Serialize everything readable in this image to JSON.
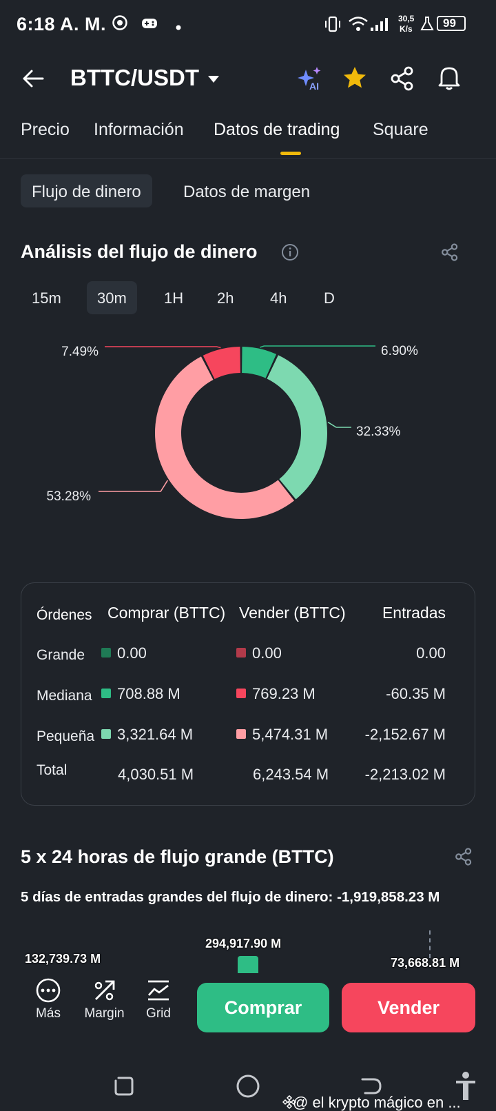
{
  "status_bar": {
    "time": "6:18 A. M.",
    "net_speed_value": "30,5",
    "net_speed_unit": "K/s",
    "battery": "99"
  },
  "header": {
    "pair": "BTTC/USDT",
    "ai_badge": "AI"
  },
  "tabs": [
    {
      "label": "Precio",
      "active": false
    },
    {
      "label": "Información",
      "active": false
    },
    {
      "label": "Datos de trading",
      "active": true
    },
    {
      "label": "Square",
      "active": false
    }
  ],
  "subtabs": [
    {
      "label": "Flujo de dinero",
      "active": true
    },
    {
      "label": "Datos de margen",
      "active": false
    }
  ],
  "money_flow": {
    "title": "Análisis del flujo de dinero",
    "intervals": [
      "15m",
      "30m",
      "1H",
      "2h",
      "4h",
      "D"
    ],
    "active_interval": "30m"
  },
  "chart_data": {
    "type": "pie",
    "donut": true,
    "slices": [
      {
        "value": 6.9,
        "label": "6.90%",
        "color": "#2ebd85"
      },
      {
        "value": 32.33,
        "label": "32.33%",
        "color": "#7dd9b0"
      },
      {
        "value": 53.28,
        "label": "53.28%",
        "color": "#ff9ea4"
      },
      {
        "value": 7.49,
        "label": "7.49%",
        "color": "#f6465d"
      }
    ]
  },
  "orders_table": {
    "headers": [
      "Órdenes",
      "Comprar (BTTC)",
      "Vender (BTTC)",
      "Entradas"
    ],
    "rows": [
      {
        "label": "Grande",
        "buy": "0.00",
        "sell": "0.00",
        "inflow": "0.00",
        "buy_color": "#1f7a55",
        "sell_color": "#b23a4a"
      },
      {
        "label": "Mediana",
        "buy": "708.88 M",
        "sell": "769.23 M",
        "inflow": "-60.35 M",
        "buy_color": "#2ebd85",
        "sell_color": "#f6465d"
      },
      {
        "label": "Pequeña",
        "buy": "3,321.64 M",
        "sell": "5,474.31 M",
        "inflow": "-2,152.67 M",
        "buy_color": "#7dd9b0",
        "sell_color": "#ff9ea4"
      },
      {
        "label": "Total",
        "buy": "4,030.51 M",
        "sell": "6,243.54 M",
        "inflow": "-2,213.02 M"
      }
    ]
  },
  "large_flow": {
    "title": "5 x 24 horas de flujo grande (BTTC)",
    "summary": "5 días de entradas grandes del flujo de dinero: -1,919,858.23 M",
    "bar_labels": [
      "132,739.73 M",
      "294,917.90 M",
      "73,668.81 M"
    ]
  },
  "bottom_bar": {
    "more": "Más",
    "margin": "Margin",
    "grid": "Grid",
    "buy": "Comprar",
    "sell": "Vender"
  },
  "watermark": "@ el krypto mágico en ..."
}
